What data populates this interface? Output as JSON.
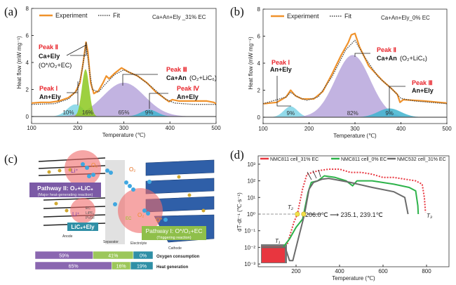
{
  "panels": {
    "a": {
      "tag": "(a)",
      "sample": "Ca+An+Ely _31% EC",
      "legend": {
        "experiment": "Experiment",
        "fit": "Fit"
      },
      "annotations": [
        {
          "peak": "Peak Ⅱ",
          "reaction": "Ca+Ely",
          "detail": "(O*/O₂+EC)"
        },
        {
          "peak": "Peak Ⅰ",
          "reaction": "An+Ely",
          "detail": ""
        },
        {
          "peak": "Peak Ⅲ",
          "reaction": "Ca+An",
          "detail": "(O₂+LiC₆)"
        },
        {
          "peak": "Peak Ⅳ",
          "reaction": "An+Ely",
          "detail": ""
        }
      ]
    },
    "b": {
      "tag": "(b)",
      "sample": "Ca+An+Ely_0% EC",
      "legend": {
        "experiment": "Experiment",
        "fit": "Fit"
      },
      "annotations": [
        {
          "peak": "Peak Ⅰ",
          "reaction": "An+Ely",
          "detail": ""
        },
        {
          "peak": "Peak Ⅱ",
          "reaction": "Ca+An",
          "detail": "(O₂+LiC₆)"
        },
        {
          "peak": "Peak Ⅲ",
          "reaction": "An+Ely",
          "detail": ""
        }
      ]
    },
    "c": {
      "tag": "(c)",
      "pathway2": {
        "title": "Pathway II: O₂+LiC₆",
        "subtitle": "(Major heat-generating reaction)"
      },
      "pathway1": {
        "title": "Pathway I: O*/O₂+EC",
        "subtitle": "(Triggering reaction)"
      },
      "anode_box": "LiC₆+Ely",
      "labels": {
        "anode": "Anode",
        "separator": "Separator",
        "electrolyte": "Electrolyte",
        "cathode": "Cathode"
      },
      "species": {
        "li1": "Li⁺",
        "o2a": "O₂",
        "o2b": "O₂",
        "li2": "Li⁺",
        "ec1": "EC",
        "lipf6": "LiPF₆",
        "pvdf": "PVDF",
        "ec2": "EC",
        "o2c": "O₂",
        "ostar": "O*"
      },
      "colors": {
        "pathway2": "#7b5aa6",
        "pathway1": "#8fbf4a",
        "anode_box": "#2f8fa6",
        "cathode": "#2f5fa8"
      },
      "bars": [
        {
          "label": "Oxygen consumption",
          "segments": [
            {
              "value": 59,
              "text": "59%",
              "color": "#8a67b0"
            },
            {
              "value": 41,
              "text": "41%",
              "color": "#9cc75a"
            },
            {
              "value": 0,
              "text": "0%",
              "color": "#2f8fa6"
            }
          ]
        },
        {
          "label": "Heat generation",
          "segments": [
            {
              "value": 65,
              "text": "65%",
              "color": "#8a67b0"
            },
            {
              "value": 16,
              "text": "16%",
              "color": "#9cc75a"
            },
            {
              "value": 19,
              "text": "19%",
              "color": "#2f8fa6"
            }
          ]
        }
      ]
    },
    "d": {
      "tag": "(d)",
      "annotation": "206.0℃ ⟶ 235.1, 239.1℃",
      "t_labels": {
        "t1": "T₁",
        "t2": "T₂",
        "t3": "T₃"
      }
    }
  },
  "chart_data": [
    {
      "type": "area",
      "panel": "a",
      "xlabel": "Temperature (℃)",
      "ylabel": "Heat flow (mW mg⁻¹)",
      "xlim": [
        100,
        500
      ],
      "ylim": [
        0,
        8
      ],
      "xticks": [
        "100",
        "200",
        "300",
        "400",
        "500"
      ],
      "yticks": [
        "0",
        "2",
        "4",
        "6",
        "8"
      ],
      "legend": "top-left",
      "grid": false,
      "series": [
        {
          "name": "Experiment",
          "color": "#f0922b",
          "style": "solid",
          "points": [
            [
              100,
              1.0
            ],
            [
              120,
              1.05
            ],
            [
              140,
              1.05
            ],
            [
              160,
              1.15
            ],
            [
              180,
              1.4
            ],
            [
              195,
              1.8
            ],
            [
              205,
              2.5
            ],
            [
              212,
              4.0
            ],
            [
              218,
              5.5
            ],
            [
              222,
              4.8
            ],
            [
              228,
              2.5
            ],
            [
              235,
              1.7
            ],
            [
              245,
              1.9
            ],
            [
              255,
              2.5
            ],
            [
              262,
              3.0
            ],
            [
              268,
              2.8
            ],
            [
              280,
              3.2
            ],
            [
              295,
              3.6
            ],
            [
              310,
              3.3
            ],
            [
              330,
              3.0
            ],
            [
              350,
              2.5
            ],
            [
              370,
              1.8
            ],
            [
              390,
              1.3
            ],
            [
              398,
              1.1
            ],
            [
              405,
              1.25
            ],
            [
              420,
              1.15
            ],
            [
              450,
              1.15
            ],
            [
              480,
              1.15
            ],
            [
              495,
              1.05
            ],
            [
              500,
              0.95
            ]
          ]
        },
        {
          "name": "Fit",
          "color": "#444444",
          "style": "dotted",
          "points": [
            [
              100,
              0.9
            ],
            [
              150,
              0.95
            ],
            [
              180,
              1.3
            ],
            [
              200,
              2.0
            ],
            [
              210,
              3.5
            ],
            [
              218,
              5.4
            ],
            [
              225,
              3.5
            ],
            [
              232,
              2.0
            ],
            [
              245,
              1.8
            ],
            [
              260,
              2.4
            ],
            [
              280,
              3.1
            ],
            [
              300,
              3.45
            ],
            [
              330,
              3.0
            ],
            [
              360,
              2.2
            ],
            [
              390,
              1.3
            ],
            [
              410,
              1.0
            ],
            [
              450,
              0.9
            ],
            [
              500,
              0.9
            ]
          ]
        }
      ],
      "peaks": [
        {
          "center": 195,
          "height": 0.9,
          "width": 18,
          "share": "10%",
          "color": "#7fd3e6"
        },
        {
          "center": 300,
          "height": 2.5,
          "width": 45,
          "share": "65%",
          "color": "#b7a6dc"
        },
        {
          "center": 355,
          "height": 0.5,
          "width": 18,
          "share": "9%",
          "color": "#3fb4cf"
        },
        {
          "center": 217,
          "height": 3.5,
          "width": 8,
          "share": "16%",
          "color": "#8cc81e"
        }
      ]
    },
    {
      "type": "area",
      "panel": "b",
      "xlabel": "Temperature (℃)",
      "ylabel": "Heat flow (mW mg⁻¹)",
      "xlim": [
        100,
        500
      ],
      "ylim": [
        0,
        8
      ],
      "xticks": [
        "100",
        "200",
        "300",
        "400",
        "500"
      ],
      "yticks": [
        "0",
        "2",
        "4",
        "6",
        "8"
      ],
      "legend": "top-left",
      "grid": false,
      "series": [
        {
          "name": "Experiment",
          "color": "#f0922b",
          "style": "solid",
          "points": [
            [
              100,
              1.0
            ],
            [
              130,
              1.1
            ],
            [
              150,
              1.5
            ],
            [
              160,
              2.0
            ],
            [
              170,
              1.6
            ],
            [
              185,
              1.35
            ],
            [
              210,
              1.35
            ],
            [
              230,
              1.9
            ],
            [
              250,
              3.2
            ],
            [
              270,
              4.6
            ],
            [
              285,
              5.5
            ],
            [
              292,
              6.1
            ],
            [
              300,
              6.2
            ],
            [
              310,
              5.2
            ],
            [
              330,
              3.8
            ],
            [
              360,
              2.7
            ],
            [
              380,
              2.1
            ],
            [
              392,
              1.7
            ],
            [
              398,
              1.1
            ],
            [
              405,
              1.3
            ],
            [
              450,
              1.2
            ],
            [
              500,
              1.05
            ]
          ]
        },
        {
          "name": "Fit",
          "color": "#444444",
          "style": "dotted",
          "points": [
            [
              100,
              1.0
            ],
            [
              150,
              1.5
            ],
            [
              160,
              1.85
            ],
            [
              175,
              1.5
            ],
            [
              195,
              1.25
            ],
            [
              220,
              1.5
            ],
            [
              250,
              3.0
            ],
            [
              280,
              5.0
            ],
            [
              300,
              5.7
            ],
            [
              320,
              4.5
            ],
            [
              350,
              3.0
            ],
            [
              380,
              2.1
            ],
            [
              400,
              1.4
            ],
            [
              430,
              1.2
            ],
            [
              500,
              1.0
            ]
          ]
        }
      ],
      "peaks": [
        {
          "center": 160,
          "height": 0.8,
          "width": 15,
          "share": "9%",
          "color": "#7fd3e6"
        },
        {
          "center": 295,
          "height": 4.6,
          "width": 38,
          "share": "82%",
          "color": "#b7a6dc"
        },
        {
          "center": 375,
          "height": 0.65,
          "width": 25,
          "share": "9%",
          "color": "#3fb4cf"
        }
      ]
    },
    {
      "type": "line",
      "panel": "d",
      "xlabel": "Temperature (℃)",
      "ylabel": "dT·dt⁻¹ (℃·s⁻¹)",
      "yscale": "log",
      "xlim": [
        25,
        900
      ],
      "ylim": [
        0.001,
        1000
      ],
      "xticks": [
        "200",
        "400",
        "600",
        "800"
      ],
      "yticks": [
        "10⁻³",
        "10⁻²",
        "10⁻¹",
        "10⁰",
        "10¹",
        "10²",
        "10³"
      ],
      "legend": "top",
      "grid": false,
      "series": [
        {
          "name": "NMC811 cell_31% EC",
          "color": "#e8363f",
          "style": "dotted",
          "points": [
            [
              160,
              0.016
            ],
            [
              190,
              0.32
            ],
            [
              206,
              1.0
            ],
            [
              230,
              32
            ],
            [
              250,
              250
            ],
            [
              300,
              400
            ],
            [
              350,
              500
            ],
            [
              400,
              500
            ],
            [
              450,
              320
            ],
            [
              500,
              320
            ],
            [
              550,
              250
            ],
            [
              600,
              160
            ],
            [
              650,
              160
            ],
            [
              700,
              126
            ],
            [
              750,
              100
            ],
            [
              780,
              63
            ],
            [
              790,
              10
            ],
            [
              795,
              1.26
            ]
          ]
        },
        {
          "name": "NMC811 cell_0% EC",
          "color": "#2db34a",
          "style": "solid",
          "points": [
            [
              140,
              0.01
            ],
            [
              170,
              0.032
            ],
            [
              200,
              0.16
            ],
            [
              230,
              0.5
            ],
            [
              235.1,
              1.0
            ],
            [
              255,
              20
            ],
            [
              270,
              80
            ],
            [
              300,
              100
            ],
            [
              330,
              200
            ],
            [
              380,
              160
            ],
            [
              430,
              100
            ],
            [
              460,
              50
            ],
            [
              480,
              100
            ],
            [
              550,
              100
            ],
            [
              650,
              63
            ],
            [
              720,
              40
            ],
            [
              750,
              25
            ],
            [
              760,
              3.2
            ],
            [
              762,
              1.0
            ]
          ]
        },
        {
          "name": "NMC532 cell_31% EC",
          "color": "#6b6b6b",
          "style": "solid",
          "points": [
            [
              40,
              0.01
            ],
            [
              150,
              0.01
            ],
            [
              170,
              0.0016
            ],
            [
              185,
              0.0016
            ],
            [
              210,
              0.032
            ],
            [
              235,
              0.63
            ],
            [
              239.1,
              1.0
            ],
            [
              260,
              32
            ],
            [
              280,
              80
            ],
            [
              320,
              126
            ],
            [
              350,
              140
            ],
            [
              450,
              80
            ],
            [
              550,
              40
            ],
            [
              650,
              22
            ],
            [
              700,
              10
            ],
            [
              712,
              1.6
            ],
            [
              715,
              1.0
            ]
          ]
        }
      ],
      "markers": [
        {
          "x": 206.0,
          "y": 1.0,
          "color": "#f2e04a"
        },
        {
          "x": 235.1,
          "y": 1.0,
          "color": "#f2e04a"
        },
        {
          "x": 239.1,
          "y": 1.0,
          "color": "#f2e04a"
        }
      ]
    }
  ]
}
